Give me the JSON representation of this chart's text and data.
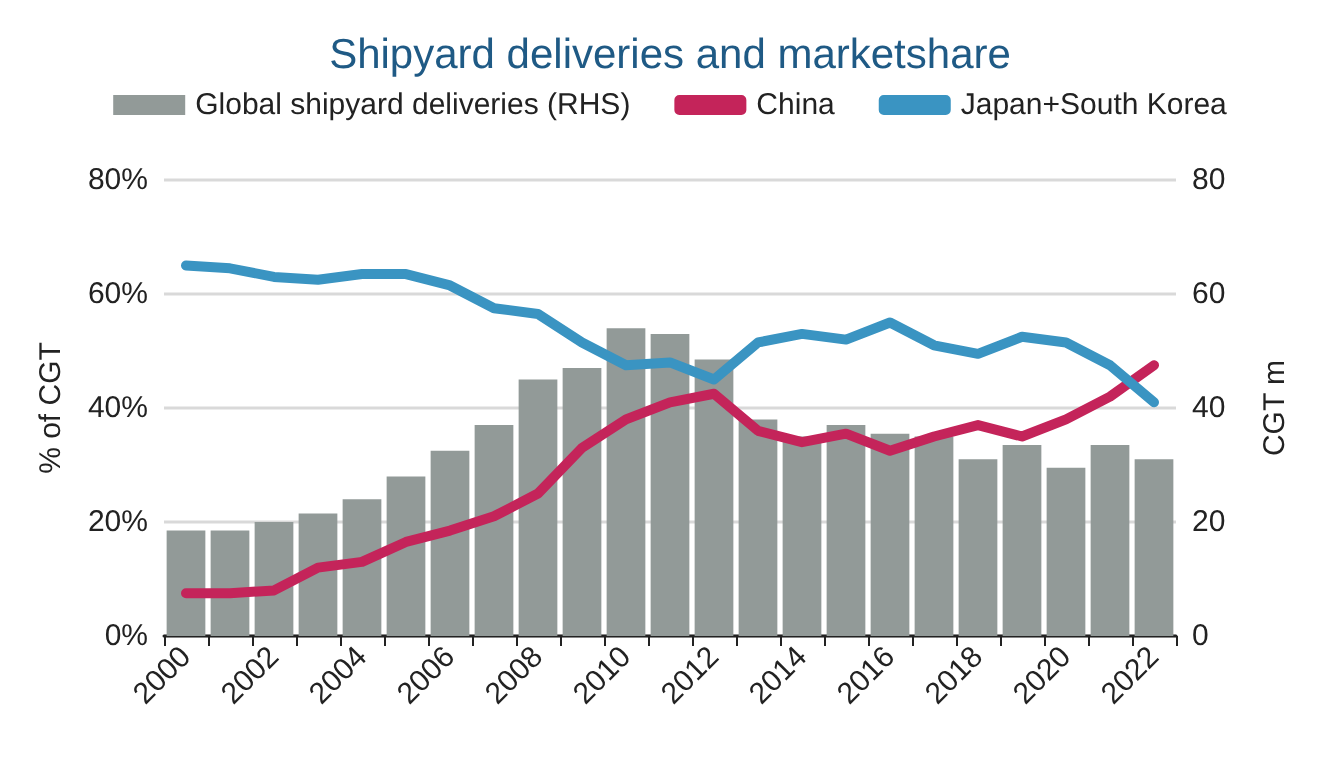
{
  "chart_data": {
    "type": "line",
    "title": "Shipyard deliveries and marketshare",
    "ylabel": "% of CGT",
    "y2label": "CGT m",
    "categories": [
      "2000",
      null,
      "2002",
      null,
      "2004",
      null,
      "2006",
      null,
      "2008",
      null,
      "2010",
      null,
      "2012",
      null,
      "2014",
      null,
      "2016",
      null,
      "2018",
      null,
      "2020",
      null,
      "2022"
    ],
    "series": [
      {
        "name": "Global shipyard deliveries (RHS)",
        "type": "bar",
        "axis": "y2",
        "color": "#929a98",
        "values": [
          18.5,
          18.5,
          20,
          21.5,
          24,
          28,
          32.5,
          37,
          45,
          47,
          54,
          53,
          48.5,
          38,
          35,
          37,
          35.5,
          35,
          31,
          33.5,
          29.5,
          33.5,
          31
        ]
      },
      {
        "name": "China",
        "color": "#c4245a",
        "values": [
          7.5,
          7.5,
          8,
          12,
          13,
          16.5,
          18.5,
          21,
          25,
          33,
          38,
          41,
          42.5,
          36,
          34,
          35.5,
          32.5,
          35,
          37,
          35,
          38,
          42,
          47.5
        ]
      },
      {
        "name": "Japan+South Korea",
        "color": "#3a94c2",
        "values": [
          65,
          64.5,
          63,
          62.5,
          63.5,
          63.5,
          61.5,
          57.5,
          56.5,
          51.5,
          47.5,
          48,
          45,
          51.5,
          53,
          52,
          55,
          51,
          49.5,
          52.5,
          51.5,
          47.5,
          41
        ]
      }
    ],
    "ylim": [
      0,
      80
    ],
    "yticks": [
      {
        "value": 0,
        "label": "0%"
      },
      {
        "value": 20,
        "label": "20%"
      },
      {
        "value": 40,
        "label": "40%"
      },
      {
        "value": 60,
        "label": "60%"
      },
      {
        "value": 80,
        "label": "80%"
      }
    ],
    "y2lim": [
      0,
      80
    ],
    "y2ticks": [
      0,
      20,
      40,
      60,
      80
    ],
    "grid": "y",
    "legend": "top",
    "marker": "none",
    "line_style": "solid"
  }
}
